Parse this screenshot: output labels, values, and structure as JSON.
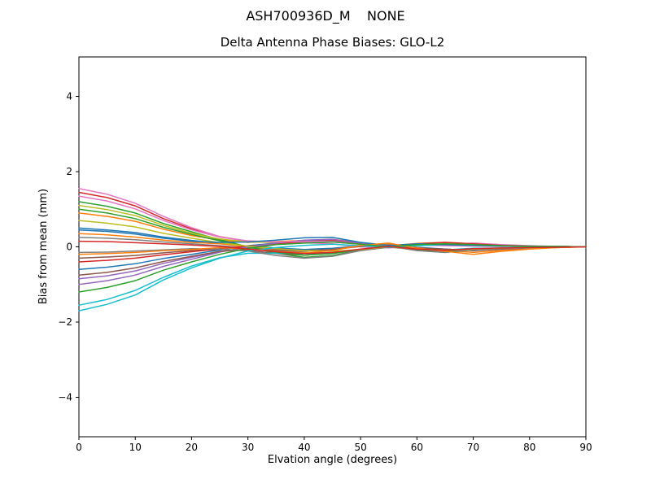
{
  "figure": {
    "suptitle": "ASH700936D_M    NONE"
  },
  "chart_data": {
    "type": "line",
    "title": "Delta Antenna Phase Biases: GLO-L2",
    "xlabel": "Elvation angle (degrees)",
    "ylabel": "Bias from mean (mm)",
    "xlim": [
      0,
      90
    ],
    "ylim": [
      -5.05,
      5.05
    ],
    "xticks": [
      0,
      10,
      20,
      30,
      40,
      50,
      60,
      70,
      80,
      90
    ],
    "yticks": [
      -4,
      -2,
      0,
      2,
      4
    ],
    "grid": false,
    "legend": "none",
    "x": [
      0,
      5,
      10,
      15,
      20,
      25,
      30,
      35,
      40,
      45,
      50,
      55,
      60,
      65,
      70,
      75,
      80,
      85,
      90
    ],
    "series": [
      {
        "name": "line-01",
        "color": "#1f77b4",
        "values": [
          0.5,
          0.45,
          0.38,
          0.26,
          0.17,
          0.1,
          0.02,
          -0.03,
          -0.07,
          -0.04,
          0.03,
          0.06,
          -0.01,
          -0.06,
          -0.1,
          -0.06,
          -0.03,
          -0.01,
          0
        ]
      },
      {
        "name": "line-02",
        "color": "#ff7f0e",
        "values": [
          0.9,
          0.81,
          0.68,
          0.47,
          0.3,
          0.18,
          0.12,
          0.14,
          0.17,
          0.2,
          0.11,
          0.03,
          0.09,
          0.12,
          0.08,
          0.04,
          0.02,
          0.01,
          0
        ]
      },
      {
        "name": "line-03",
        "color": "#2ca02c",
        "values": [
          1.2,
          1.08,
          0.9,
          0.62,
          0.4,
          0.19,
          0.0,
          -0.17,
          -0.28,
          -0.23,
          -0.09,
          0.03,
          -0.09,
          -0.15,
          -0.08,
          -0.05,
          -0.03,
          -0.01,
          0
        ]
      },
      {
        "name": "line-04",
        "color": "#d62728",
        "values": [
          1.45,
          1.31,
          1.09,
          0.75,
          0.48,
          0.27,
          0.15,
          0.12,
          0.12,
          0.14,
          0.07,
          0.03,
          0.06,
          0.07,
          0.05,
          0.02,
          0.01,
          0.01,
          0
        ]
      },
      {
        "name": "line-05",
        "color": "#9467bd",
        "values": [
          -0.85,
          -0.77,
          -0.64,
          -0.44,
          -0.28,
          -0.13,
          -0.01,
          0.07,
          0.12,
          0.13,
          0.07,
          0.02,
          0.04,
          0.04,
          0.03,
          0.02,
          0.01,
          0,
          0
        ]
      },
      {
        "name": "line-06",
        "color": "#8c564b",
        "values": [
          -0.3,
          -0.27,
          -0.23,
          -0.16,
          -0.1,
          -0.07,
          -0.09,
          -0.18,
          -0.22,
          -0.18,
          -0.07,
          0.01,
          -0.07,
          -0.11,
          -0.06,
          -0.04,
          -0.02,
          -0.01,
          0
        ]
      },
      {
        "name": "line-07",
        "color": "#e377c2",
        "values": [
          1.55,
          1.4,
          1.16,
          0.81,
          0.51,
          0.27,
          0.14,
          0.11,
          0.11,
          0.08,
          0.0,
          -0.03,
          0.04,
          0.06,
          0.1,
          0.06,
          0.03,
          0.01,
          0
        ]
      },
      {
        "name": "line-08",
        "color": "#7f7f7f",
        "values": [
          0.25,
          0.23,
          0.19,
          0.13,
          0.08,
          0.03,
          -0.03,
          -0.09,
          -0.14,
          -0.17,
          -0.1,
          -0.01,
          -0.07,
          -0.12,
          -0.08,
          -0.04,
          -0.02,
          -0.01,
          0
        ]
      },
      {
        "name": "line-09",
        "color": "#bcbd22",
        "values": [
          1.1,
          0.99,
          0.83,
          0.57,
          0.36,
          0.21,
          0.13,
          0.12,
          0.14,
          0.16,
          0.09,
          0.03,
          0.07,
          0.1,
          0.06,
          0.03,
          0.02,
          0.01,
          0
        ]
      },
      {
        "name": "line-10",
        "color": "#17becf",
        "values": [
          -1.55,
          -1.4,
          -1.16,
          -0.81,
          -0.51,
          -0.29,
          -0.17,
          -0.17,
          -0.18,
          -0.16,
          -0.07,
          0.0,
          -0.06,
          -0.08,
          -0.04,
          -0.03,
          -0.02,
          -0.01,
          0
        ]
      },
      {
        "name": "line-11",
        "color": "#1f77b4",
        "values": [
          -0.6,
          -0.54,
          -0.45,
          -0.31,
          -0.2,
          -0.08,
          0.03,
          0.1,
          0.16,
          0.17,
          0.08,
          0.02,
          0.05,
          0.05,
          0.03,
          0.02,
          0.01,
          0.01,
          0
        ]
      },
      {
        "name": "line-12",
        "color": "#ff7f0e",
        "values": [
          0.35,
          0.32,
          0.26,
          0.18,
          0.12,
          0.08,
          0.0,
          -0.06,
          -0.11,
          -0.07,
          0.03,
          0.08,
          -0.02,
          -0.09,
          -0.15,
          -0.09,
          -0.05,
          -0.02,
          0
        ]
      },
      {
        "name": "line-13",
        "color": "#2ca02c",
        "values": [
          1.0,
          0.9,
          0.75,
          0.52,
          0.33,
          0.16,
          0.0,
          -0.14,
          -0.22,
          -0.18,
          -0.07,
          0.03,
          -0.07,
          -0.11,
          -0.06,
          -0.04,
          -0.02,
          -0.01,
          0
        ]
      },
      {
        "name": "line-14",
        "color": "#d62728",
        "values": [
          -0.4,
          -0.36,
          -0.3,
          -0.21,
          -0.13,
          -0.05,
          0.02,
          0.08,
          0.14,
          0.17,
          0.1,
          0.02,
          0.08,
          0.12,
          0.08,
          0.04,
          0.02,
          0.01,
          0
        ]
      },
      {
        "name": "line-15",
        "color": "#9467bd",
        "values": [
          -1.0,
          -0.9,
          -0.75,
          -0.52,
          -0.33,
          -0.14,
          0.0,
          0.1,
          0.18,
          0.2,
          0.1,
          0.03,
          0.06,
          0.05,
          0.03,
          0.02,
          0.01,
          0.01,
          0
        ]
      },
      {
        "name": "line-16",
        "color": "#8c564b",
        "values": [
          -0.75,
          -0.68,
          -0.56,
          -0.39,
          -0.25,
          -0.12,
          -0.08,
          -0.08,
          -0.1,
          -0.07,
          0.01,
          0.04,
          -0.03,
          -0.06,
          -0.1,
          -0.06,
          -0.03,
          -0.01,
          0
        ]
      },
      {
        "name": "line-17",
        "color": "#e377c2",
        "values": [
          1.35,
          1.22,
          1.01,
          0.7,
          0.45,
          0.26,
          0.16,
          0.13,
          0.14,
          0.15,
          0.07,
          0.03,
          0.05,
          0.03,
          0.02,
          0.01,
          0.01,
          0,
          0
        ]
      },
      {
        "name": "line-18",
        "color": "#7f7f7f",
        "values": [
          -0.15,
          -0.14,
          -0.11,
          -0.08,
          -0.05,
          -0.06,
          -0.11,
          -0.23,
          -0.3,
          -0.25,
          -0.1,
          0.02,
          -0.1,
          -0.15,
          -0.08,
          -0.05,
          -0.03,
          -0.01,
          0
        ]
      },
      {
        "name": "line-19",
        "color": "#bcbd22",
        "values": [
          0.7,
          0.63,
          0.53,
          0.36,
          0.23,
          0.11,
          0.02,
          -0.05,
          -0.1,
          -0.12,
          -0.07,
          0.0,
          -0.06,
          -0.09,
          -0.06,
          -0.03,
          -0.02,
          -0.01,
          0
        ]
      },
      {
        "name": "line-20",
        "color": "#17becf",
        "values": [
          -1.7,
          -1.53,
          -1.28,
          -0.88,
          -0.56,
          -0.3,
          -0.11,
          -0.02,
          0.04,
          0.07,
          0.03,
          -0.01,
          0.03,
          0.06,
          0.04,
          0.02,
          0.01,
          0,
          0
        ]
      },
      {
        "name": "line-21",
        "color": "#1f77b4",
        "values": [
          0.45,
          0.41,
          0.34,
          0.23,
          0.15,
          0.12,
          0.13,
          0.18,
          0.24,
          0.25,
          0.12,
          0.04,
          0.08,
          0.06,
          0.04,
          0.02,
          0.02,
          0.01,
          0
        ]
      },
      {
        "name": "line-22",
        "color": "#ff7f0e",
        "values": [
          -0.2,
          -0.18,
          -0.15,
          -0.1,
          -0.07,
          -0.02,
          -0.06,
          -0.12,
          -0.16,
          -0.1,
          0.04,
          0.1,
          -0.04,
          -0.12,
          -0.2,
          -0.12,
          -0.06,
          -0.02,
          0
        ]
      },
      {
        "name": "line-23",
        "color": "#2ca02c",
        "values": [
          -1.2,
          -1.08,
          -0.9,
          -0.62,
          -0.4,
          -0.2,
          -0.04,
          0.06,
          0.1,
          0.13,
          0.07,
          0.0,
          0.06,
          0.08,
          0.06,
          0.03,
          0.01,
          0.01,
          0
        ]
      },
      {
        "name": "line-24",
        "color": "#d62728",
        "values": [
          0.15,
          0.14,
          0.11,
          0.08,
          0.05,
          0.01,
          -0.06,
          -0.13,
          -0.18,
          -0.15,
          -0.06,
          0.01,
          -0.06,
          -0.09,
          -0.05,
          -0.03,
          -0.02,
          -0.01,
          0
        ]
      }
    ]
  }
}
